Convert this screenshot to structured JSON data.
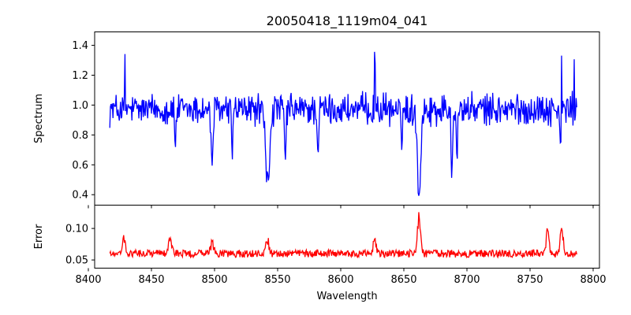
{
  "chart_data": {
    "title": "20050418_1119m04_041",
    "xlabel": "Wavelength",
    "x_range": [
      8405,
      8805
    ],
    "x_ticks": [
      8400,
      8450,
      8500,
      8550,
      8600,
      8650,
      8700,
      8750,
      8800
    ],
    "panels": [
      {
        "name": "spectrum",
        "type": "line",
        "ylabel": "Spectrum",
        "ylim": [
          0.33,
          1.49
        ],
        "y_ticks": [
          0.4,
          0.6,
          0.8,
          1.0,
          1.2,
          1.4
        ],
        "y_tick_labels": [
          "0.4",
          "0.6",
          "0.8",
          "1.0",
          "1.2",
          "1.4"
        ],
        "color": "#0000ff",
        "series": {
          "x_start": 8417,
          "x_end": 8787,
          "points": 740,
          "baseline": 0.97,
          "noise_amplitude": 0.085,
          "absorption_lines": [
            {
              "center": 8498.0,
              "depth": 0.33,
              "width": 0.9
            },
            {
              "center": 8542.1,
              "depth": 0.5,
              "width": 1.6
            },
            {
              "center": 8662.1,
              "depth": 0.56,
              "width": 1.3
            },
            {
              "center": 8469.0,
              "depth": 0.22,
              "width": 0.6
            },
            {
              "center": 8514.0,
              "depth": 0.25,
              "width": 0.6
            },
            {
              "center": 8556.0,
              "depth": 0.35,
              "width": 0.6
            },
            {
              "center": 8582.0,
              "depth": 0.28,
              "width": 0.6
            },
            {
              "center": 8648.0,
              "depth": 0.22,
              "width": 0.6
            },
            {
              "center": 8688.0,
              "depth": 0.45,
              "width": 0.5
            },
            {
              "center": 8692.0,
              "depth": 0.3,
              "width": 0.6
            },
            {
              "center": 8774.0,
              "depth": 0.25,
              "width": 0.6
            }
          ],
          "emission_spikes": [
            {
              "center": 8429.0,
              "height": 0.36
            },
            {
              "center": 8627.0,
              "height": 0.35
            },
            {
              "center": 8775.0,
              "height": 0.45
            },
            {
              "center": 8785.0,
              "height": 0.35
            }
          ]
        }
      },
      {
        "name": "error",
        "type": "line",
        "ylabel": "Error",
        "ylim": [
          0.037,
          0.137
        ],
        "y_ticks": [
          0.05,
          0.1
        ],
        "y_tick_labels": [
          "0.05",
          "0.10"
        ],
        "color": "#ff0000",
        "series": {
          "x_start": 8417,
          "x_end": 8787,
          "points": 740,
          "baseline": 0.06,
          "noise_amplitude": 0.006,
          "features": [
            {
              "center": 8428.0,
              "height": 0.035
            },
            {
              "center": 8465.0,
              "height": 0.03
            },
            {
              "center": 8498.0,
              "height": 0.02
            },
            {
              "center": 8542.0,
              "height": 0.025
            },
            {
              "center": 8627.0,
              "height": 0.03
            },
            {
              "center": 8662.0,
              "height": 0.075
            },
            {
              "center": 8764.0,
              "height": 0.04
            },
            {
              "center": 8775.0,
              "height": 0.045
            }
          ]
        }
      }
    ]
  }
}
